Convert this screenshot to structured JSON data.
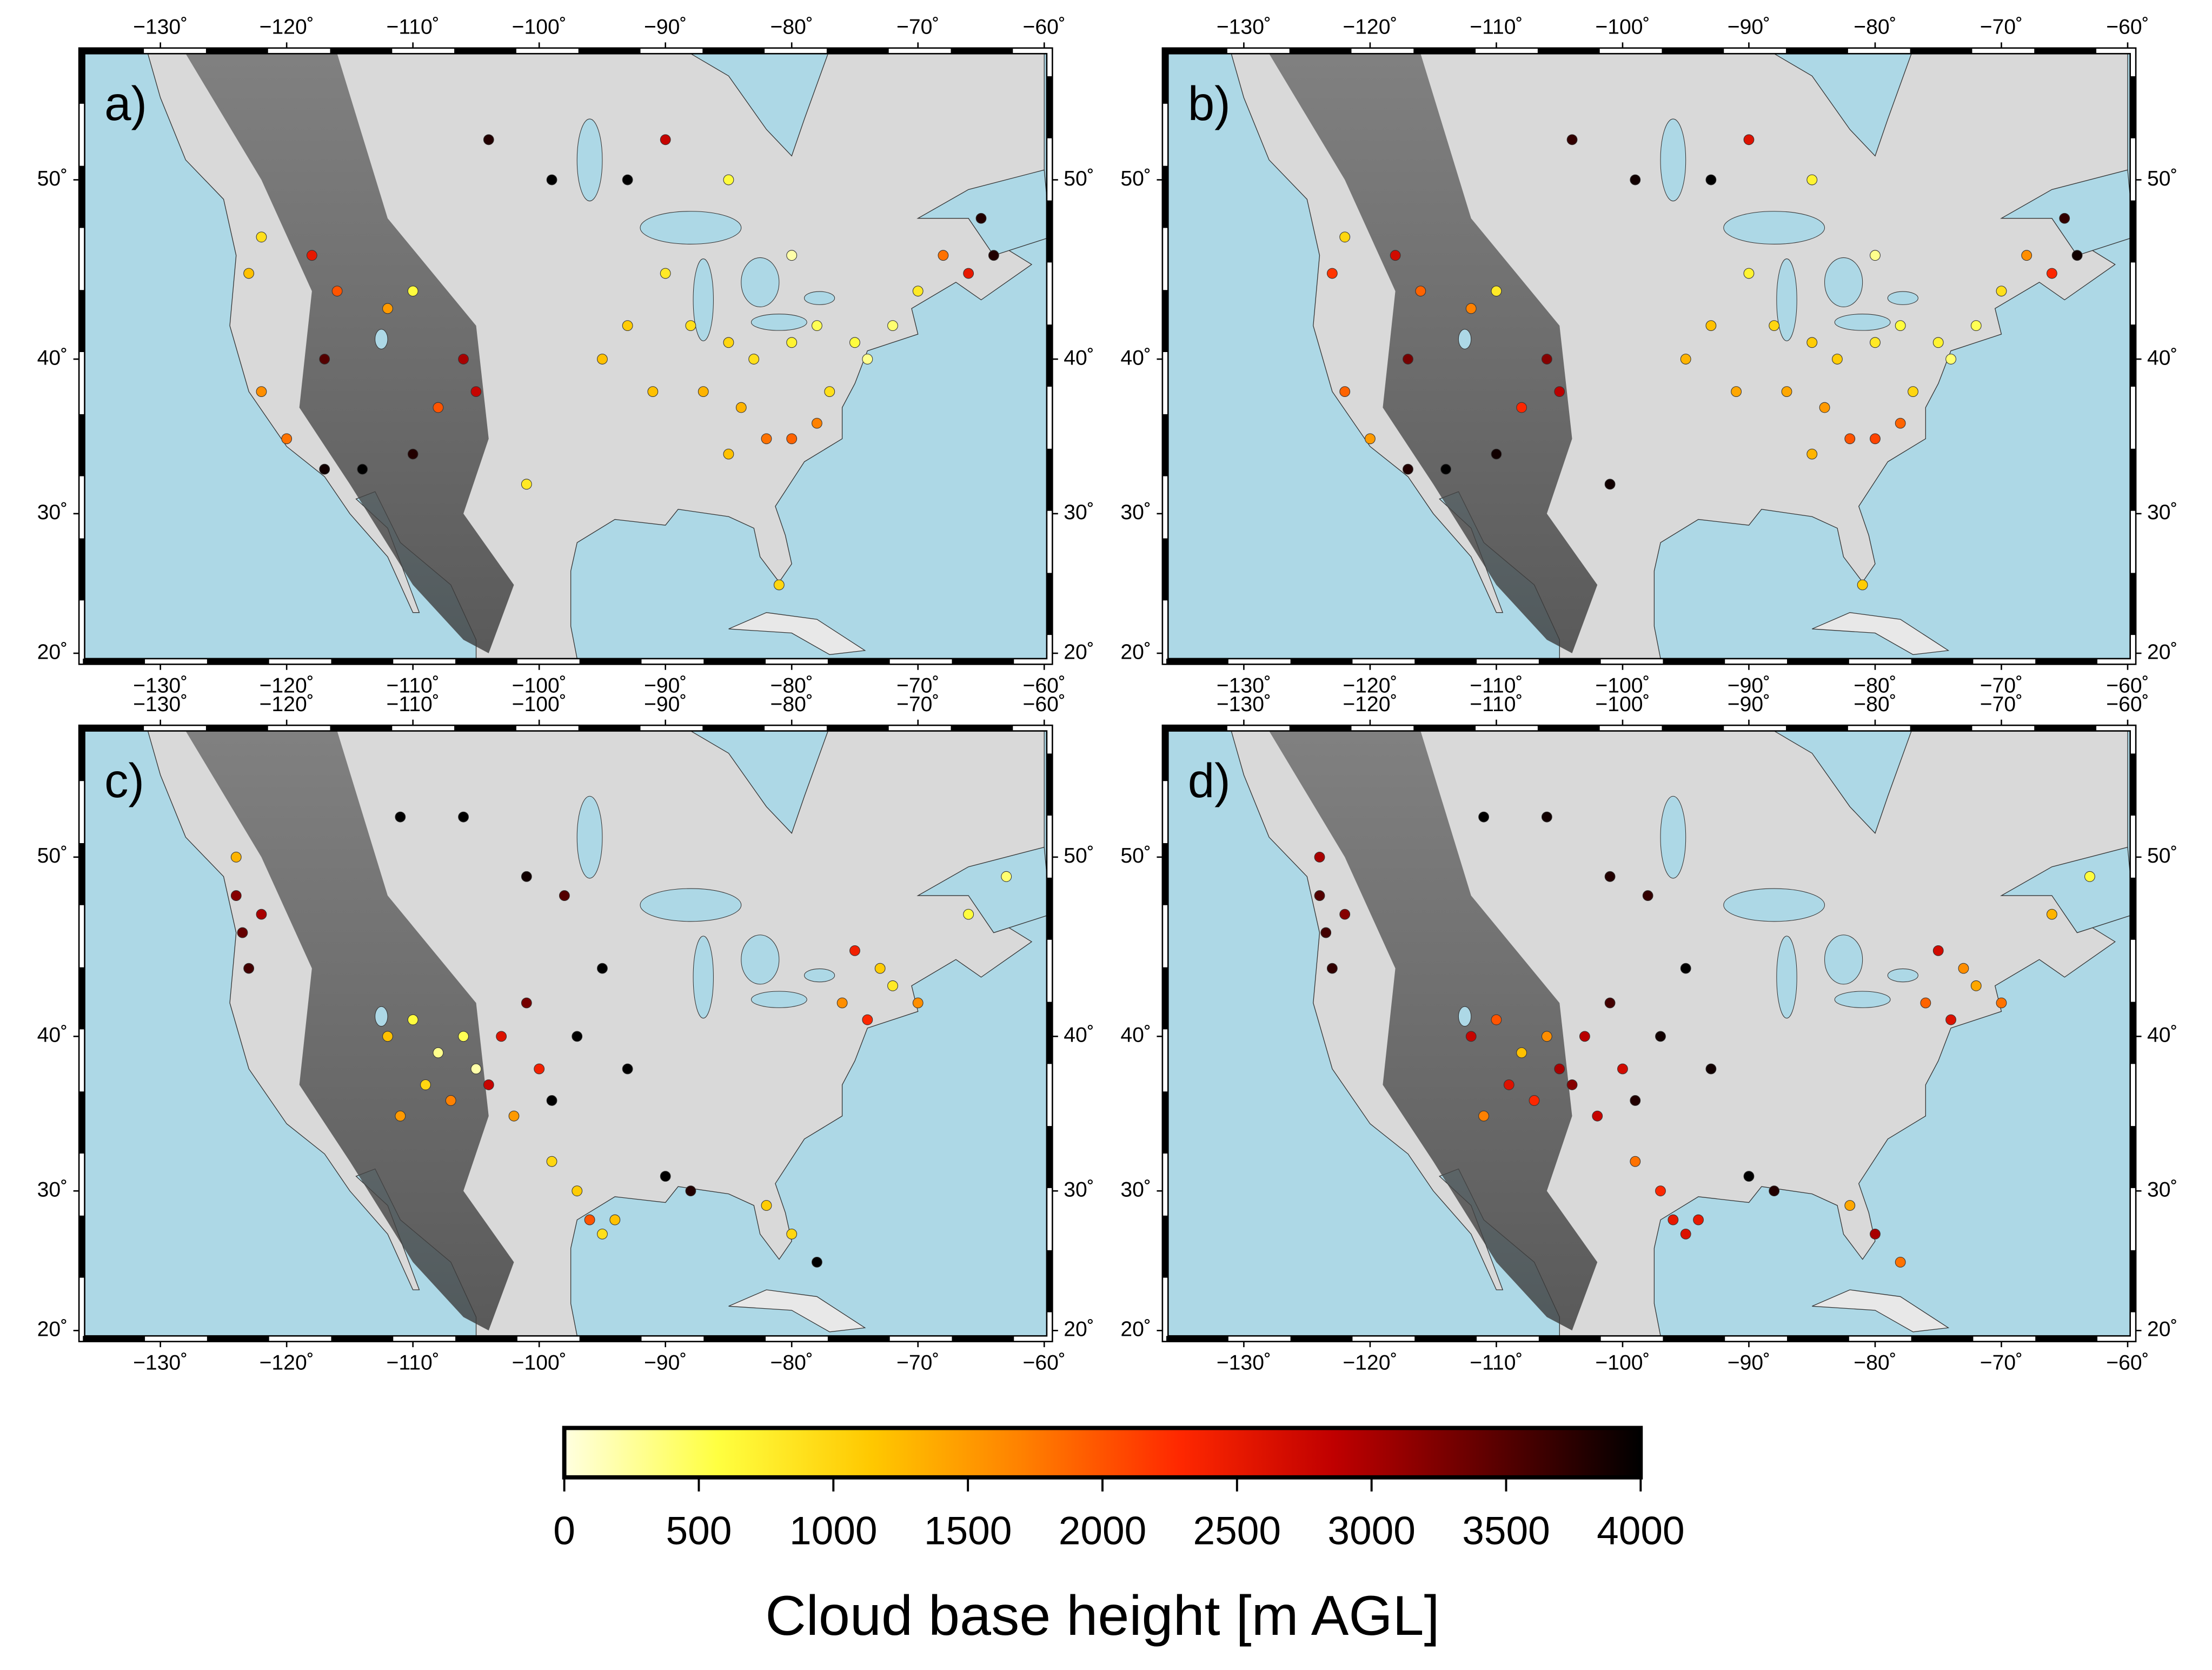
{
  "map": {
    "lonlim": [
      -136,
      -59.8
    ],
    "latlim": [
      19.6,
      56
    ],
    "lon_ticks": [
      {
        "value": -130,
        "label": "−130˚"
      },
      {
        "value": -120,
        "label": "−120˚"
      },
      {
        "value": -110,
        "label": "−110˚"
      },
      {
        "value": -100,
        "label": "−100˚"
      },
      {
        "value": -90,
        "label": "−90˚"
      },
      {
        "value": -80,
        "label": "−80˚"
      },
      {
        "value": -70,
        "label": "−70˚"
      },
      {
        "value": -60,
        "label": "−60˚"
      }
    ],
    "lat_ticks": [
      {
        "value": 20,
        "label": "20˚"
      },
      {
        "value": 30,
        "label": "30˚"
      },
      {
        "value": 40,
        "label": "40˚"
      },
      {
        "value": 50,
        "label": "50˚"
      }
    ],
    "colormap": [
      "#ffffe0",
      "#ffff40",
      "#ffc800",
      "#ff7f00",
      "#ff2800",
      "#c00000",
      "#600000",
      "#000000"
    ],
    "panels": [
      {
        "label": "a)",
        "stations": {
          "lon": [
            -90,
            -88,
            -85,
            -83,
            -80,
            -78,
            -75,
            -72,
            -70,
            -93,
            -95,
            -91,
            -87,
            -84,
            -82,
            -80,
            -78,
            -85,
            -77,
            -74,
            -68,
            -66,
            -64,
            -65,
            -80,
            -85,
            -122,
            -123,
            -118,
            -116,
            -112,
            -110,
            -106,
            -105,
            -108,
            -117,
            -122,
            -120,
            -117,
            -114,
            -110,
            -104,
            -99,
            -93,
            -90,
            -101,
            -81
          ],
          "lat": [
            45,
            42,
            41,
            40,
            41,
            42,
            41,
            42,
            44,
            42,
            40,
            38,
            38,
            37,
            35,
            35,
            36,
            34,
            38,
            40,
            46,
            45,
            46,
            48,
            46,
            50,
            47,
            45,
            46,
            44,
            43,
            44,
            40,
            38,
            37,
            40,
            38,
            35,
            33,
            33,
            34,
            52,
            50,
            50,
            52,
            32,
            25
          ],
          "height": [
            800,
            900,
            1000,
            900,
            700,
            500,
            600,
            400,
            800,
            1100,
            1200,
            1200,
            1300,
            1300,
            1800,
            1900,
            1700,
            1200,
            900,
            300,
            1800,
            2500,
            3800,
            3800,
            200,
            600,
            900,
            1200,
            2500,
            2000,
            1500,
            600,
            3000,
            2800,
            2000,
            3500,
            1600,
            1800,
            3900,
            4000,
            3800,
            3800,
            4000,
            4000,
            2800,
            800,
            1000
          ]
        }
      },
      {
        "label": "b)",
        "stations": {
          "lon": [
            -90,
            -88,
            -85,
            -83,
            -80,
            -78,
            -75,
            -72,
            -70,
            -93,
            -95,
            -91,
            -87,
            -84,
            -82,
            -80,
            -78,
            -85,
            -77,
            -74,
            -68,
            -66,
            -64,
            -65,
            -80,
            -85,
            -122,
            -123,
            -118,
            -116,
            -112,
            -110,
            -106,
            -105,
            -108,
            -117,
            -122,
            -120,
            -117,
            -114,
            -110,
            -104,
            -99,
            -93,
            -90,
            -101,
            -81
          ],
          "lat": [
            45,
            42,
            41,
            40,
            41,
            42,
            41,
            42,
            44,
            42,
            40,
            38,
            38,
            37,
            35,
            35,
            36,
            34,
            38,
            40,
            46,
            45,
            46,
            48,
            46,
            50,
            47,
            45,
            46,
            44,
            43,
            44,
            40,
            38,
            37,
            40,
            38,
            35,
            33,
            33,
            34,
            52,
            50,
            50,
            52,
            32,
            25
          ],
          "height": [
            700,
            1000,
            1100,
            1100,
            800,
            600,
            700,
            500,
            900,
            1200,
            1300,
            1400,
            1400,
            1500,
            2000,
            2100,
            1900,
            1300,
            1000,
            400,
            1600,
            2300,
            3900,
            3700,
            300,
            700,
            1000,
            2200,
            2700,
            1900,
            1700,
            800,
            3200,
            2900,
            2300,
            3300,
            1900,
            1500,
            3800,
            4000,
            3900,
            3700,
            3900,
            4000,
            2600,
            3900,
            1100
          ]
        }
      },
      {
        "label": "c)",
        "stations": {
          "lon": [
            -124,
            -123.5,
            -123,
            -124,
            -122,
            -112,
            -110,
            -108,
            -106,
            -105,
            -104,
            -107,
            -109,
            -111,
            -103,
            -101,
            -100,
            -102,
            -99,
            -97,
            -96,
            -95,
            -93,
            -90,
            -88,
            -82,
            -80,
            -76,
            -74,
            -72,
            -70,
            -73,
            -75,
            -66,
            -63,
            -98,
            -95,
            -111,
            -106,
            -101,
            -97,
            -99,
            -94,
            -78
          ],
          "lat": [
            48,
            46,
            44,
            50,
            47,
            40,
            41,
            39,
            40,
            38,
            37,
            36,
            37,
            35,
            40,
            42,
            38,
            35,
            32,
            30,
            28,
            27,
            38,
            31,
            30,
            29,
            27,
            42,
            41,
            43,
            42,
            44,
            45,
            47,
            49,
            48,
            44,
            52,
            52,
            49,
            40,
            36,
            28,
            25
          ],
          "height": [
            3200,
            3400,
            3600,
            1300,
            3000,
            1200,
            600,
            300,
            500,
            200,
            2800,
            1700,
            1000,
            1500,
            2600,
            3300,
            2400,
            1500,
            1000,
            1100,
            2000,
            900,
            4000,
            4000,
            3800,
            1100,
            1000,
            1600,
            2300,
            800,
            1600,
            1100,
            2400,
            600,
            400,
            3500,
            4000,
            4000,
            4000,
            3900,
            4000,
            4000,
            1200,
            4000
          ]
        }
      },
      {
        "label": "d)",
        "stations": {
          "lon": [
            -124,
            -123.5,
            -123,
            -124,
            -122,
            -112,
            -110,
            -108,
            -106,
            -105,
            -104,
            -107,
            -109,
            -111,
            -103,
            -101,
            -100,
            -102,
            -99,
            -97,
            -96,
            -95,
            -93,
            -90,
            -88,
            -82,
            -80,
            -76,
            -74,
            -72,
            -70,
            -73,
            -75,
            -66,
            -63,
            -98,
            -95,
            -111,
            -106,
            -101,
            -97,
            -99,
            -94,
            -78
          ],
          "lat": [
            48,
            46,
            44,
            50,
            47,
            40,
            41,
            39,
            40,
            38,
            37,
            36,
            37,
            35,
            40,
            42,
            38,
            35,
            32,
            30,
            28,
            27,
            38,
            31,
            30,
            29,
            27,
            42,
            41,
            43,
            42,
            44,
            45,
            47,
            49,
            48,
            44,
            52,
            52,
            49,
            40,
            36,
            28,
            25
          ],
          "height": [
            3500,
            3600,
            3700,
            3000,
            3200,
            2800,
            2000,
            1200,
            1600,
            3000,
            3200,
            2300,
            2600,
            1700,
            2900,
            3600,
            2700,
            2800,
            1800,
            2300,
            2500,
            2600,
            3900,
            4000,
            3800,
            1400,
            3000,
            1900,
            2600,
            1400,
            1800,
            1600,
            2700,
            1300,
            600,
            3700,
            4000,
            4000,
            3900,
            3800,
            3900,
            3800,
            2500,
            1800
          ]
        }
      }
    ],
    "colorbar": {
      "ticks": [
        0,
        500,
        1000,
        1500,
        2000,
        2500,
        3000,
        3500,
        4000
      ],
      "lim": [
        0,
        4000
      ],
      "label": "Cloud base height [m AGL]"
    }
  }
}
